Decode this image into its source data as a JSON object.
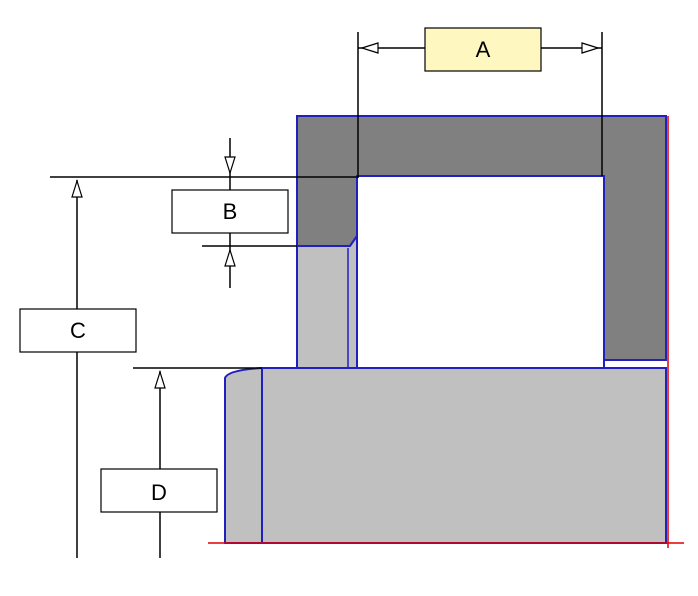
{
  "diagram": {
    "labels": {
      "a": "A",
      "b": "B",
      "c": "C",
      "d": "D"
    },
    "colors": {
      "background": "#ffffff",
      "dark_gray": "#808080",
      "light_gray": "#c0c0c0",
      "outline_blue": "#2020c0",
      "edge_red": "#e00000",
      "line_black": "#000000",
      "box_highlight": "#fff7c0",
      "box_normal": "#ffffff"
    },
    "highlighted_label": "A"
  }
}
